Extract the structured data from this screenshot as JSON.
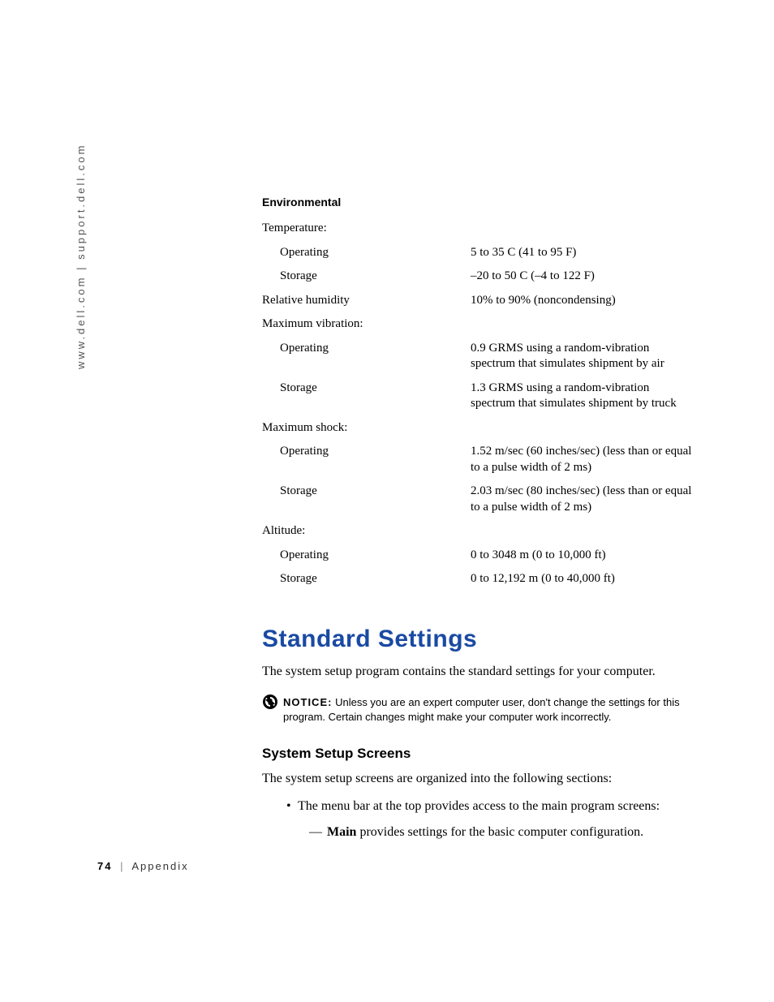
{
  "side_text": "www.dell.com | support.dell.com",
  "table": {
    "title": "Environmental",
    "rows": [
      {
        "label": "Temperature:",
        "value": "",
        "indent": false
      },
      {
        "label": "Operating",
        "value": "5  to 35 C (41  to 95 F)",
        "indent": true
      },
      {
        "label": "Storage",
        "value": "–20  to 50 C (–4  to 122 F)",
        "indent": true
      },
      {
        "label": "Relative humidity",
        "value": "10% to 90% (noncondensing)",
        "indent": false
      },
      {
        "label": "Maximum vibration:",
        "value": "",
        "indent": false
      },
      {
        "label": "Operating",
        "value": "0.9 GRMS using a random-vibration spectrum that simulates shipment by air",
        "indent": true
      },
      {
        "label": "Storage",
        "value": "1.3 GRMS using a random-vibration spectrum that simulates shipment by truck",
        "indent": true
      },
      {
        "label": "Maximum shock:",
        "value": "",
        "indent": false
      },
      {
        "label": "Operating",
        "value": "1.52 m/sec (60 inches/sec) (less than or equal to a pulse width of 2 ms)",
        "indent": true
      },
      {
        "label": "Storage",
        "value": "2.03 m/sec (80 inches/sec) (less than or equal to a pulse width of 2 ms)",
        "indent": true
      },
      {
        "label": "Altitude:",
        "value": "",
        "indent": false
      },
      {
        "label": "Operating",
        "value": "0 to 3048 m (0 to 10,000 ft)",
        "indent": true
      },
      {
        "label": "Storage",
        "value": "0 to 12,192 m (0 to 40,000 ft)",
        "indent": true
      }
    ]
  },
  "heading": "Standard Settings",
  "intro": "The system setup program contains the standard settings for your computer.",
  "notice": {
    "label": "NOTICE:",
    "text": "Unless you are an expert computer user, don't change the settings for this program. Certain changes might make your computer work incorrectly.",
    "icon_bg": "#000000",
    "icon_fg": "#ffffff"
  },
  "subheading": "System Setup Screens",
  "subtext": "The system setup screens are organized into the following sections:",
  "bullet": "The menu bar at the top provides access to the main program screens:",
  "subbullet_bold": "Main",
  "subbullet_rest": " provides settings for the basic computer configuration.",
  "footer": {
    "page": "74",
    "section": "Appendix"
  },
  "colors": {
    "heading": "#1a4aa3",
    "text": "#000000"
  }
}
